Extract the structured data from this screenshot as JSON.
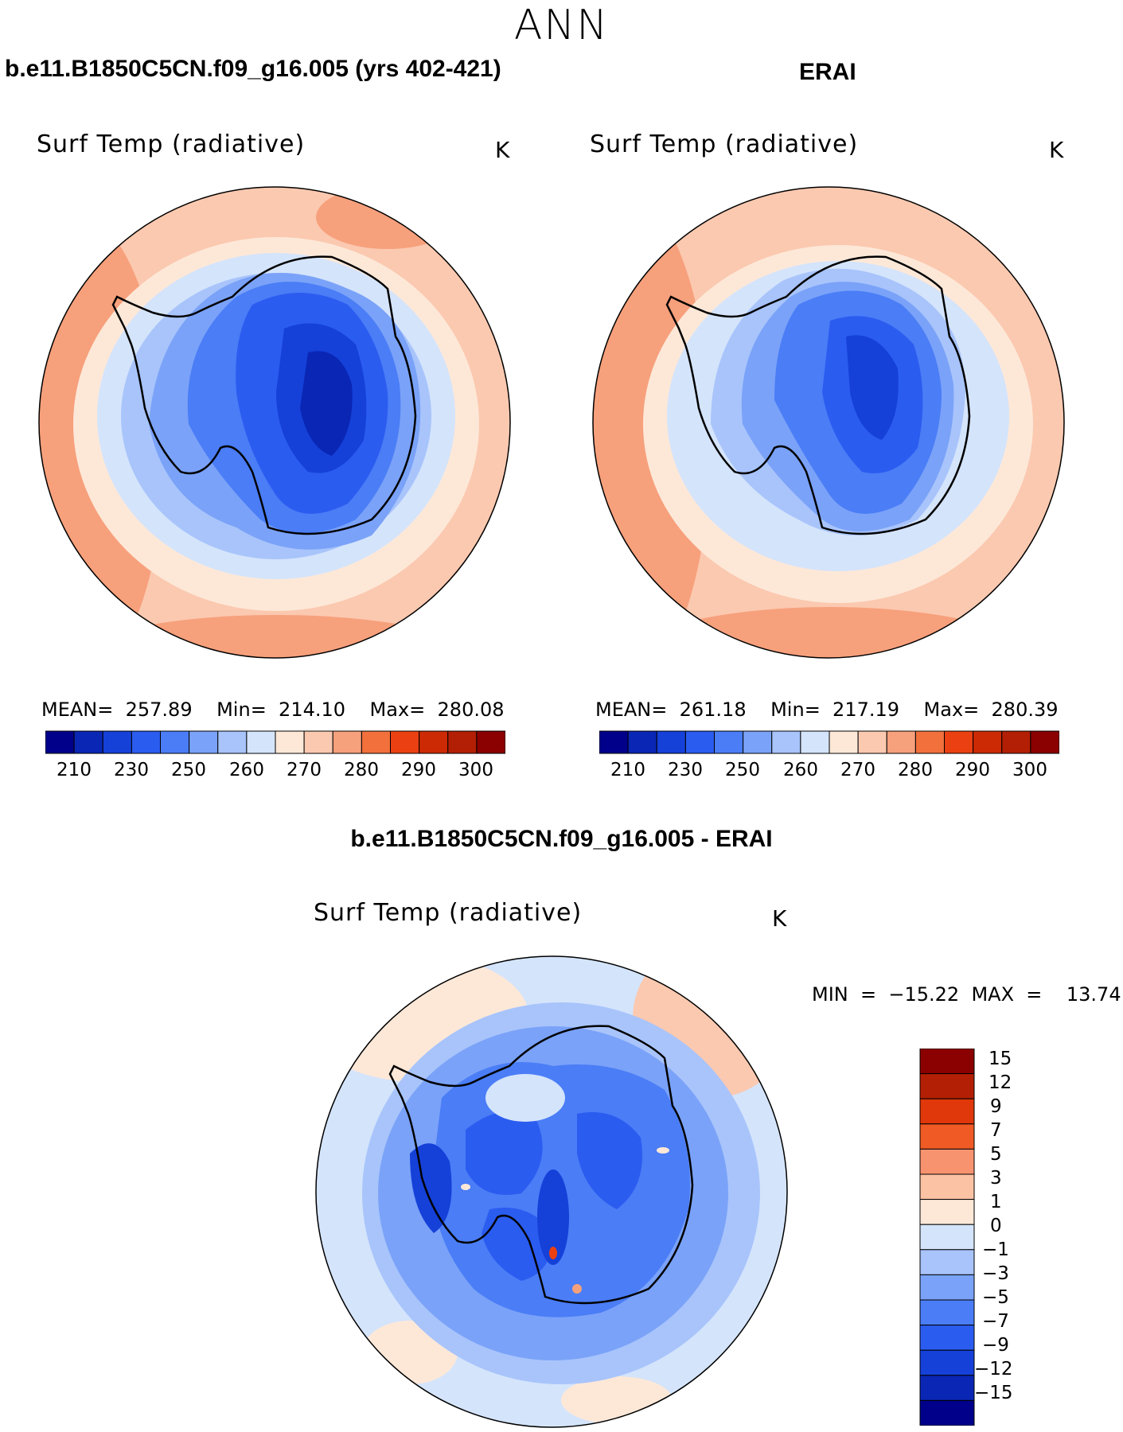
{
  "season": "ANN",
  "panels": {
    "model": {
      "title": "b.e11.B1850C5CN.f09_g16.005 (yrs 402-421)",
      "field": "Surf Temp (radiative)",
      "units": "K",
      "stats_text": "MEAN=  257.89    Min=  214.10    Max=  280.08",
      "mean": 257.89,
      "min": 214.1,
      "max": 280.08
    },
    "obs": {
      "title": "ERAI",
      "field": "Surf Temp (radiative)",
      "units": "K",
      "stats_text": "MEAN=  261.18    Min=  217.19    Max=  280.39",
      "mean": 261.18,
      "min": 217.19,
      "max": 280.39
    },
    "diff": {
      "title": "b.e11.B1850C5CN.f09_g16.005 - ERAI",
      "field": "Surf Temp (radiative)",
      "units": "K",
      "minmax_text": "MIN  =  −15.22  MAX  =    13.74",
      "min": -15.22,
      "max": 13.74
    }
  },
  "colorbar_abs": {
    "colors": [
      "#00008b",
      "#0a26b4",
      "#1541d9",
      "#2b5cf0",
      "#4a7df6",
      "#7aa2f8",
      "#a8c4fb",
      "#d4e4fb",
      "#fde8d8",
      "#fbc9b0",
      "#f7a07c",
      "#f2703c",
      "#eb4012",
      "#cc2a05",
      "#b31f04",
      "#8b0000"
    ],
    "tick_labels": [
      "210",
      "230",
      "250",
      "260",
      "270",
      "280",
      "290",
      "300"
    ]
  },
  "colorbar_diff": {
    "colors": [
      "#8b0000",
      "#b31f04",
      "#e0380a",
      "#f05a25",
      "#f89370",
      "#fbc2a4",
      "#fde8d8",
      "#d4e4fb",
      "#a8c4fb",
      "#7aa2f8",
      "#4a7df6",
      "#2b5cf0",
      "#1541d9",
      "#0a26b4",
      "#00008b"
    ],
    "tick_labels": [
      "15",
      "12",
      "9",
      "7",
      "5",
      "3",
      "1",
      "0",
      "−1",
      "−3",
      "−5",
      "−7",
      "−9",
      "−12",
      "−15"
    ]
  }
}
